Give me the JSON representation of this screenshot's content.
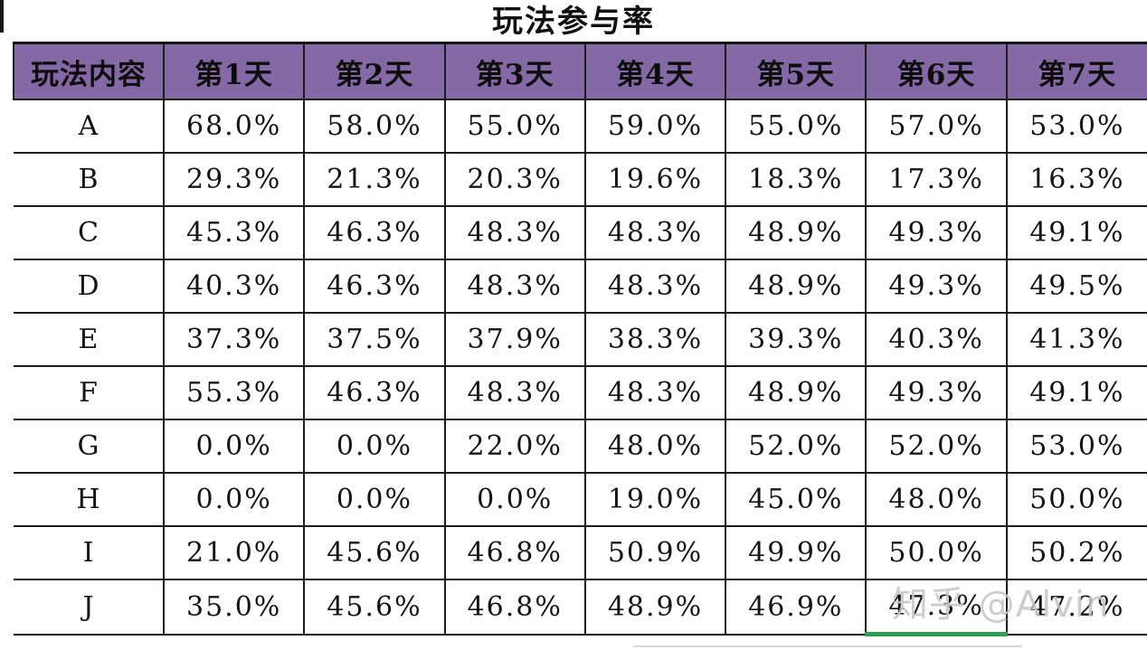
{
  "title": "玩法参与率",
  "watermark": "知乎 @Alvin",
  "colors": {
    "header_bg": "#8568A6",
    "grid_border": "#1c1c1c",
    "active_cell_underline": "#2e9e50",
    "watermark_gray": "#c7c7c7"
  },
  "active_cell": {
    "row_label": "J",
    "column": "第6天"
  },
  "active_cell_index": {
    "row": 9,
    "col": 5
  },
  "chart_data": {
    "type": "table",
    "title": "玩法参与率",
    "columns": [
      "玩法内容",
      "第1天",
      "第2天",
      "第3天",
      "第4天",
      "第5天",
      "第6天",
      "第7天"
    ],
    "rows": [
      {
        "label": "A",
        "values": [
          "68.0%",
          "58.0%",
          "55.0%",
          "59.0%",
          "55.0%",
          "57.0%",
          "53.0%"
        ]
      },
      {
        "label": "B",
        "values": [
          "29.3%",
          "21.3%",
          "20.3%",
          "19.6%",
          "18.3%",
          "17.3%",
          "16.3%"
        ]
      },
      {
        "label": "C",
        "values": [
          "45.3%",
          "46.3%",
          "48.3%",
          "48.3%",
          "48.9%",
          "49.3%",
          "49.1%"
        ]
      },
      {
        "label": "D",
        "values": [
          "40.3%",
          "46.3%",
          "48.3%",
          "48.3%",
          "48.9%",
          "49.3%",
          "49.5%"
        ]
      },
      {
        "label": "E",
        "values": [
          "37.3%",
          "37.5%",
          "37.9%",
          "38.3%",
          "39.3%",
          "40.3%",
          "41.3%"
        ]
      },
      {
        "label": "F",
        "values": [
          "55.3%",
          "46.3%",
          "48.3%",
          "48.3%",
          "48.9%",
          "49.3%",
          "49.1%"
        ]
      },
      {
        "label": "G",
        "values": [
          "0.0%",
          "0.0%",
          "22.0%",
          "48.0%",
          "52.0%",
          "52.0%",
          "53.0%"
        ]
      },
      {
        "label": "H",
        "values": [
          "0.0%",
          "0.0%",
          "0.0%",
          "19.0%",
          "45.0%",
          "48.0%",
          "50.0%"
        ]
      },
      {
        "label": "I",
        "values": [
          "21.0%",
          "45.6%",
          "46.8%",
          "50.9%",
          "49.9%",
          "50.0%",
          "50.2%"
        ]
      },
      {
        "label": "J",
        "values": [
          "35.0%",
          "45.6%",
          "46.8%",
          "48.9%",
          "46.9%",
          "47.3%",
          "47.2%"
        ]
      }
    ]
  }
}
